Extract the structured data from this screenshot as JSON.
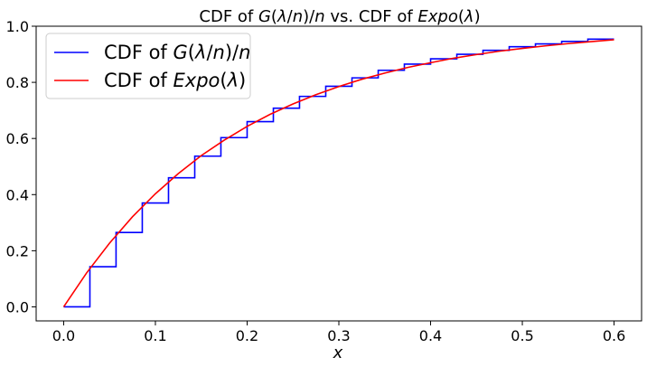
{
  "chart_data": {
    "type": "line",
    "title_parts": [
      {
        "text": "CDF of ",
        "italic": false
      },
      {
        "text": "G",
        "italic": true
      },
      {
        "text": "(",
        "italic": false
      },
      {
        "text": "λ",
        "italic": true
      },
      {
        "text": "/",
        "italic": false
      },
      {
        "text": "n",
        "italic": true
      },
      {
        "text": ")/",
        "italic": false
      },
      {
        "text": "n",
        "italic": true
      },
      {
        "text": " vs. CDF of ",
        "italic": false
      },
      {
        "text": "Expo",
        "italic": true
      },
      {
        "text": "(",
        "italic": false
      },
      {
        "text": "λ",
        "italic": true
      },
      {
        "text": ")",
        "italic": false
      }
    ],
    "xlabel": "x",
    "ylabel": "",
    "xlim": [
      -0.03,
      0.63
    ],
    "ylim": [
      -0.05,
      1.0
    ],
    "xticks": [
      0.0,
      0.1,
      0.2,
      0.3,
      0.4,
      0.5,
      0.6
    ],
    "xtick_labels": [
      "0.0",
      "0.1",
      "0.2",
      "0.3",
      "0.4",
      "0.5",
      "0.6"
    ],
    "yticks": [
      0.0,
      0.2,
      0.4,
      0.6,
      0.8,
      1.0
    ],
    "ytick_labels": [
      "0.0",
      "0.2",
      "0.4",
      "0.6",
      "0.8",
      "1.0"
    ],
    "grid": false,
    "legend_position": "top-left",
    "series": [
      {
        "name_parts": [
          {
            "text": "CDF of ",
            "italic": false
          },
          {
            "text": "G",
            "italic": true
          },
          {
            "text": "(",
            "italic": false
          },
          {
            "text": "λ",
            "italic": true
          },
          {
            "text": "/",
            "italic": false
          },
          {
            "text": "n",
            "italic": true
          },
          {
            "text": ")/",
            "italic": false
          },
          {
            "text": "n",
            "italic": true
          }
        ],
        "style": "step",
        "color": "#0000ff",
        "x": [
          0.0,
          0.0286,
          0.0571,
          0.0857,
          0.1143,
          0.1429,
          0.1714,
          0.2,
          0.2286,
          0.2571,
          0.2857,
          0.3143,
          0.3429,
          0.3714,
          0.4,
          0.4286,
          0.4571,
          0.4857,
          0.5143,
          0.5429,
          0.5714,
          0.6
        ],
        "y": [
          0.0,
          0.143,
          0.265,
          0.37,
          0.46,
          0.537,
          0.603,
          0.66,
          0.708,
          0.75,
          0.786,
          0.816,
          0.843,
          0.865,
          0.884,
          0.9,
          0.914,
          0.927,
          0.937,
          0.946,
          0.954,
          0.954
        ]
      },
      {
        "name_parts": [
          {
            "text": "CDF of ",
            "italic": false
          },
          {
            "text": "Expo",
            "italic": true
          },
          {
            "text": "(",
            "italic": false
          },
          {
            "text": "λ",
            "italic": true
          },
          {
            "text": ")",
            "italic": false
          }
        ],
        "style": "line",
        "color": "#ff0000",
        "x": [
          0.0,
          0.025,
          0.05,
          0.075,
          0.1,
          0.125,
          0.15,
          0.175,
          0.2,
          0.225,
          0.25,
          0.275,
          0.3,
          0.325,
          0.35,
          0.375,
          0.4,
          0.425,
          0.45,
          0.475,
          0.5,
          0.525,
          0.55,
          0.575,
          0.6
        ],
        "y": [
          0.0,
          0.121,
          0.227,
          0.321,
          0.403,
          0.475,
          0.539,
          0.594,
          0.643,
          0.686,
          0.723,
          0.756,
          0.785,
          0.811,
          0.833,
          0.853,
          0.87,
          0.886,
          0.899,
          0.911,
          0.921,
          0.93,
          0.938,
          0.945,
          0.952
        ]
      }
    ]
  }
}
